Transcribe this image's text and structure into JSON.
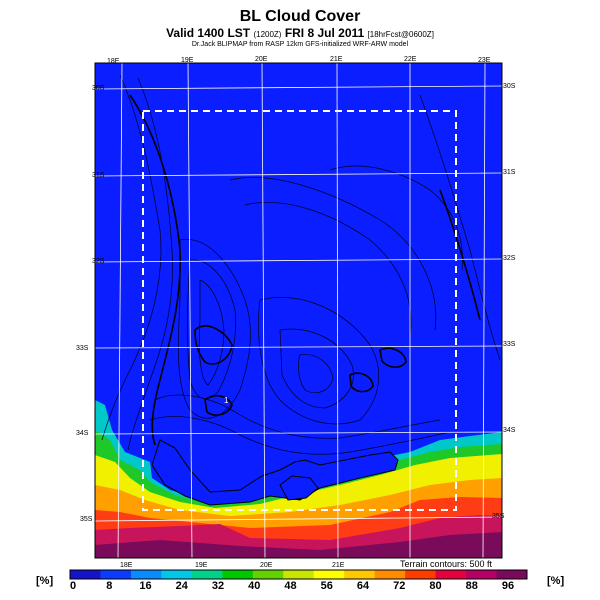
{
  "header": {
    "title": "BL Cloud Cover",
    "valid_prefix": "Valid 1400 LST",
    "valid_small": "(1200Z)",
    "valid_date": "FRI 8 Jul 2011",
    "valid_suffix": "[18hrFcst@0600Z]",
    "source": "Dr.Jack BLIPMAP from RASP 12km GFS-initialized WRF-ARW model"
  },
  "map": {
    "lon_top": [
      "18E",
      "19E",
      "20E",
      "21E",
      "22E",
      "23E"
    ],
    "lon_bottom": [
      "18E",
      "19E",
      "20E",
      "21E"
    ],
    "lat_left": [
      "30S",
      "31S",
      "32S",
      "33S",
      "34S",
      "35S"
    ],
    "lat_right": [
      "30S",
      "31S",
      "32S",
      "33S",
      "34S",
      "35S"
    ],
    "marker_label": "1",
    "terrain_note": "Terrain contours: 500 ft",
    "colors": {
      "low": "#0a1eff",
      "high": "#7a0a5a",
      "grid": "#ffffff",
      "contour": "#000022"
    }
  },
  "colorbar": {
    "unit_left": "[%]",
    "unit_right": "[%]",
    "ticks": [
      "0",
      "8",
      "16",
      "24",
      "32",
      "40",
      "48",
      "56",
      "64",
      "72",
      "80",
      "88",
      "96"
    ],
    "colors": [
      "#1414c8",
      "#0a3cff",
      "#0a8cff",
      "#00c8e6",
      "#00d28c",
      "#00c800",
      "#64d200",
      "#c8e600",
      "#ffff00",
      "#ffc800",
      "#ff8c00",
      "#ff3c00",
      "#e6003c",
      "#b40064",
      "#7a0a5a"
    ]
  }
}
